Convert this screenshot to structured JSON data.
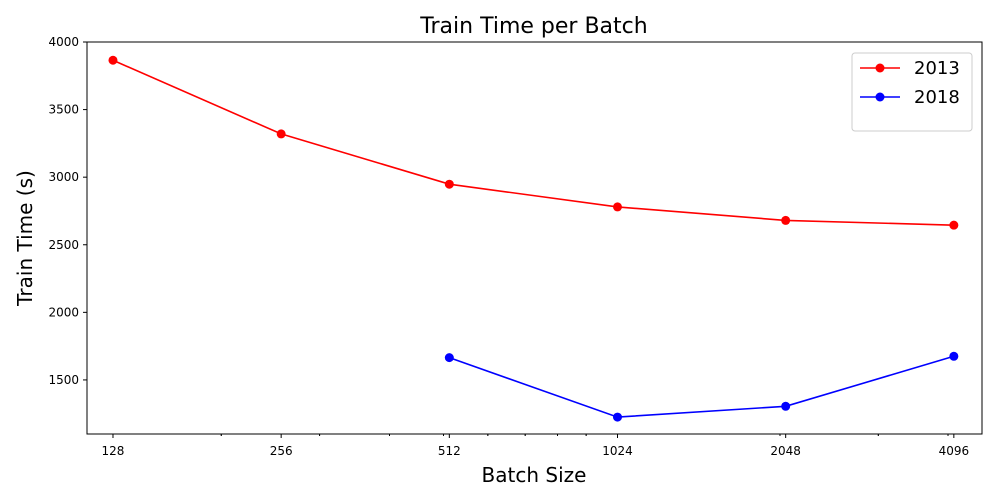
{
  "chart_data": {
    "type": "line",
    "title": "Train Time per Batch",
    "xlabel": "Batch Size",
    "ylabel": "Train Time (s)",
    "x_scale": "log2",
    "x": [
      128,
      256,
      512,
      1024,
      2048,
      4096
    ],
    "x_tick_labels": [
      "128",
      "256",
      "512",
      "1024",
      "2048",
      "4096"
    ],
    "xlim": [
      115,
      4600
    ],
    "ylim": [
      1100,
      4000
    ],
    "y_ticks": [
      1500,
      2000,
      2500,
      3000,
      3500,
      4000
    ],
    "y_tick_labels": [
      "1500",
      "2000",
      "2500",
      "3000",
      "3500",
      "4000"
    ],
    "grid": false,
    "legend_position": "top-right",
    "series": [
      {
        "name": "2013",
        "color": "#ff0000",
        "x": [
          128,
          256,
          512,
          1024,
          2048,
          4096
        ],
        "values": [
          3865,
          3320,
          2948,
          2780,
          2680,
          2645
        ]
      },
      {
        "name": "2018",
        "color": "#0000ff",
        "x": [
          512,
          1024,
          2048,
          4096
        ],
        "values": [
          1665,
          1225,
          1305,
          1675
        ]
      }
    ]
  }
}
